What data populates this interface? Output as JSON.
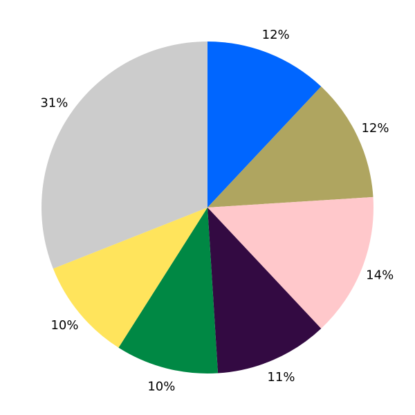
{
  "chart_data": {
    "type": "pie",
    "categories": [
      null,
      null,
      null,
      null,
      null,
      null,
      null
    ],
    "values": [
      12,
      12,
      14,
      11,
      10,
      10,
      31
    ],
    "value_labels": [
      "12%",
      "12%",
      "14%",
      "11%",
      "10%",
      "10%",
      "31%"
    ],
    "colors": [
      "#0066ff",
      "#afa560",
      "#ffc8cb",
      "#330a42",
      "#008844",
      "#ffe45c",
      "#cccccc"
    ],
    "start_angle": 90,
    "direction": "clockwise"
  }
}
